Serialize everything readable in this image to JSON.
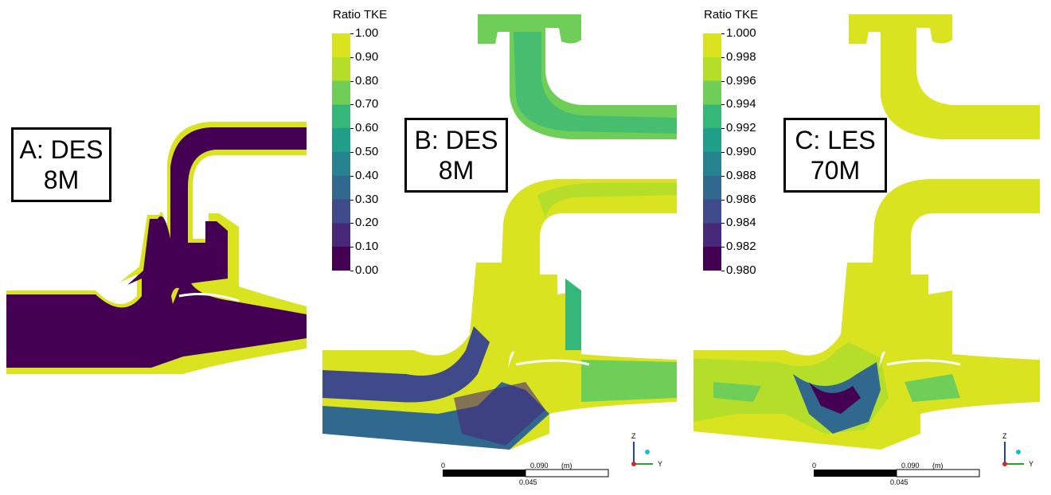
{
  "colormap": [
    "#440154",
    "#482878",
    "#3e4a89",
    "#31688e",
    "#26828e",
    "#1f9e89",
    "#35b779",
    "#6ece58",
    "#b5de2b",
    "#d9e320"
  ],
  "panelA": {
    "label_line1": "A: DES",
    "label_line2": "8M"
  },
  "panelB": {
    "label_line1": "B: DES",
    "label_line2": "8M",
    "legend_title": "Ratio TKE",
    "ticks": [
      "1.00",
      "0.90",
      "0.80",
      "0.70",
      "0.60",
      "0.50",
      "0.40",
      "0.30",
      "0.20",
      "0.10",
      "0.00"
    ],
    "scale": {
      "start": "0",
      "end": "0.090",
      "unit": "(m)",
      "mid": "0.045"
    },
    "axes": {
      "z": "Z",
      "y": "Y"
    }
  },
  "panelC": {
    "label_line1": "C: LES",
    "label_line2": "70M",
    "legend_title": "Ratio TKE",
    "ticks": [
      "1.000",
      "0.998",
      "0.996",
      "0.994",
      "0.992",
      "0.990",
      "0.988",
      "0.986",
      "0.984",
      "0.982",
      "0.980"
    ],
    "scale": {
      "start": "0",
      "end": "0.090",
      "unit": "(m)",
      "mid": "0.045"
    },
    "axes": {
      "z": "Z",
      "y": "Y"
    }
  }
}
